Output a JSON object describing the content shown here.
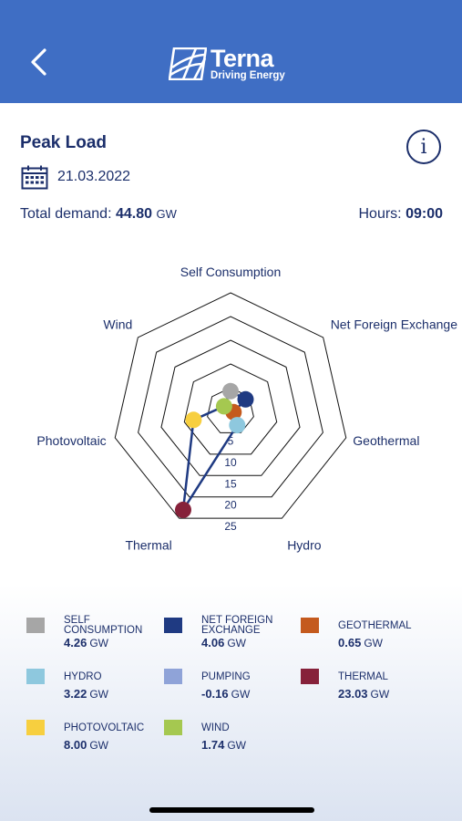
{
  "header": {
    "logo_name": "Terna",
    "logo_tagline": "Driving Energy",
    "back_icon": "chevron-left-icon",
    "colors": {
      "background": "#3f6ec4",
      "foreground": "#ffffff"
    }
  },
  "page": {
    "title": "Peak Load",
    "info_icon": "info-icon",
    "calendar_icon": "calendar-icon",
    "date": "21.03.2022",
    "total_demand_label": "Total demand:",
    "total_demand_value": "44.80",
    "total_demand_unit": "GW",
    "hours_label": "Hours:",
    "hours_value": "09:00"
  },
  "chart_data": {
    "type": "radar",
    "title": "",
    "axes": [
      "Self Consumption",
      "Net Foreign Exchange",
      "Geothermal",
      "Hydro",
      "Thermal",
      "Photovoltaic",
      "Wind"
    ],
    "ticks": [
      5,
      10,
      15,
      20,
      25
    ],
    "range": [
      0,
      25
    ],
    "series": [
      {
        "values": [
          4.26,
          4.06,
          0.65,
          3.22,
          23.03,
          8.0,
          1.74
        ],
        "colors": [
          "#a6a6a6",
          "#1f3a82",
          "#c45a1e",
          "#8ec8de",
          "#86213a",
          "#f7cf3f",
          "#a5c850"
        ]
      }
    ],
    "line_color": "#1f3a82",
    "grid": true
  },
  "legend": [
    {
      "name": "SELF CONSUMPTION",
      "value": "4.26",
      "unit": "GW",
      "color": "#a6a6a6"
    },
    {
      "name": "NET FOREIGN EXCHANGE",
      "value": "4.06",
      "unit": "GW",
      "color": "#1f3a82"
    },
    {
      "name": "GEOTHERMAL",
      "value": "0.65",
      "unit": "GW",
      "color": "#c45a1e"
    },
    {
      "name": "HYDRO",
      "value": "3.22",
      "unit": "GW",
      "color": "#8ec8de"
    },
    {
      "name": "PUMPING",
      "value": "-0.16",
      "unit": "GW",
      "color": "#8fa3d8"
    },
    {
      "name": "THERMAL",
      "value": "23.03",
      "unit": "GW",
      "color": "#86213a"
    },
    {
      "name": "PHOTOVOLTAIC",
      "value": "8.00",
      "unit": "GW",
      "color": "#f7cf3f"
    },
    {
      "name": "WIND",
      "value": "1.74",
      "unit": "GW",
      "color": "#a5c850"
    }
  ]
}
